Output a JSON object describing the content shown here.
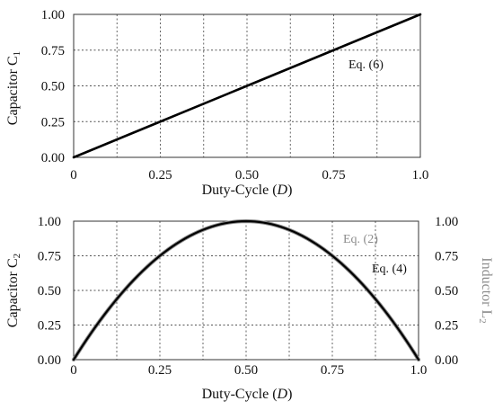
{
  "chart_data": [
    {
      "type": "line",
      "xlabel": "Duty-Cycle (",
      "xlabel_var": "D",
      "xlabel_end": ")",
      "ylabel": "Capacitor C",
      "ylabel_sub": "1",
      "xlim": [
        0,
        1
      ],
      "ylim": [
        0,
        1
      ],
      "x_ticks": [
        0,
        0.25,
        0.5,
        0.75,
        1.0
      ],
      "x_tick_labels": [
        "0",
        "0.25",
        "0.50",
        "0.75",
        "1.0"
      ],
      "y_ticks": [
        0,
        0.25,
        0.5,
        0.75,
        1.0
      ],
      "y_tick_labels": [
        "0.00",
        "0.25",
        "0.50",
        "0.75",
        "1.00"
      ],
      "grid": "dotted, 8 vertical divisions, 4 horizontal divisions",
      "series": [
        {
          "x": [
            0,
            0.25,
            0.5,
            0.75,
            1.0
          ],
          "y": [
            0,
            0.25,
            0.5,
            0.75,
            1.0
          ],
          "color": "#000000"
        }
      ],
      "annotations": [
        {
          "text": "Eq. (6)",
          "color": "#111111"
        }
      ]
    },
    {
      "type": "line",
      "xlabel": "Duty-Cycle (",
      "xlabel_var": "D",
      "xlabel_end": ")",
      "ylabel": "Capacitor C",
      "ylabel_sub": "2",
      "y2label": "Inductor L",
      "y2label_sub": "2",
      "xlim": [
        0,
        1
      ],
      "ylim": [
        0,
        1
      ],
      "x_ticks": [
        0,
        0.25,
        0.5,
        0.75,
        1.0
      ],
      "x_tick_labels": [
        "0",
        "0.25",
        "0.50",
        "0.75",
        "1.0"
      ],
      "y_ticks": [
        0,
        0.25,
        0.5,
        0.75,
        1.0
      ],
      "y_tick_labels": [
        "0.00",
        "0.25",
        "0.50",
        "0.75",
        "1.00"
      ],
      "y2_tick_labels": [
        "0.00",
        "0.25",
        "0.50",
        "0.75",
        "1.00"
      ],
      "grid": "dotted, 8 vertical divisions, 4 horizontal divisions",
      "series": [
        {
          "x": [
            0,
            0.1,
            0.2,
            0.3,
            0.4,
            0.5,
            0.6,
            0.7,
            0.8,
            0.9,
            1.0
          ],
          "y": [
            0,
            0.36,
            0.64,
            0.84,
            0.96,
            1.0,
            0.96,
            0.84,
            0.64,
            0.36,
            0
          ],
          "color": "#8c8c8c"
        },
        {
          "x": [
            0,
            0.1,
            0.2,
            0.3,
            0.4,
            0.5,
            0.6,
            0.7,
            0.8,
            0.9,
            1.0
          ],
          "y": [
            0,
            0.36,
            0.64,
            0.84,
            0.96,
            1.0,
            0.96,
            0.84,
            0.64,
            0.36,
            0
          ],
          "color": "#000000"
        }
      ],
      "annotations": [
        {
          "text": "Eq. (2)",
          "color": "#8c8c8c"
        },
        {
          "text": "Eq. (4)",
          "color": "#111111"
        }
      ]
    }
  ]
}
